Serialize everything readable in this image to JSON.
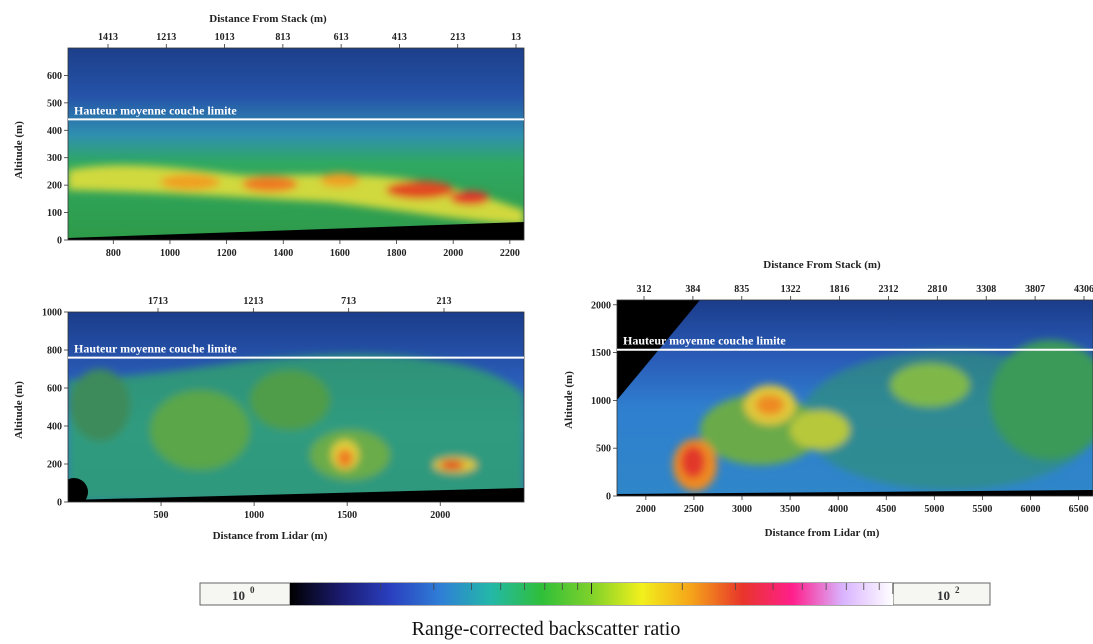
{
  "chart_data": [
    {
      "type": "heatmap",
      "id": "panel-1",
      "xlabel": "",
      "x2label": "Distance From Stack (m)",
      "ylabel": "Altitude (m)",
      "x_ticks": [
        "800",
        "1000",
        "1200",
        "1400",
        "1600",
        "1800",
        "2000",
        "2200"
      ],
      "x_range": [
        640,
        2250
      ],
      "x2_ticks": [
        "1413",
        "1213",
        "1013",
        "813",
        "613",
        "413",
        "213",
        "13"
      ],
      "y_ticks": [
        "0",
        "100",
        "200",
        "300",
        "400",
        "500",
        "600"
      ],
      "y_range": [
        0,
        700
      ],
      "boundary_layer": {
        "label": "Hauteur moyenne couche limite",
        "altitude": 440
      },
      "plume_centerline": [
        [
          650,
          230
        ],
        [
          850,
          225
        ],
        [
          1050,
          215
        ],
        [
          1250,
          200
        ],
        [
          1450,
          210
        ],
        [
          1650,
          200
        ],
        [
          1850,
          180
        ],
        [
          2050,
          160
        ],
        [
          2200,
          140
        ]
      ]
    },
    {
      "type": "heatmap",
      "id": "panel-2",
      "xlabel": "Distance from Lidar (m)",
      "x2label": "",
      "ylabel": "Altitude (m)",
      "x_ticks": [
        "500",
        "1000",
        "1500",
        "2000"
      ],
      "x_range": [
        0,
        2450
      ],
      "x2_ticks": [
        "1713",
        "1213",
        "713",
        "213"
      ],
      "y_ticks": [
        "0",
        "200",
        "400",
        "600",
        "800",
        "1000"
      ],
      "y_range": [
        0,
        1000
      ],
      "boundary_layer": {
        "label": "Hauteur moyenne couche limite",
        "altitude": 760
      }
    },
    {
      "type": "heatmap",
      "id": "panel-3",
      "xlabel": "Distance from Lidar (m)",
      "x2label": "Distance From Stack (m)",
      "ylabel": "Altitude (m)",
      "x_ticks": [
        "2000",
        "2500",
        "3000",
        "3500",
        "4000",
        "4500",
        "5000",
        "5500",
        "6000",
        "6500"
      ],
      "x_range": [
        1700,
        6650
      ],
      "x2_ticks": [
        "312",
        "384",
        "835",
        "1322",
        "1816",
        "2312",
        "2810",
        "3308",
        "3807",
        "4306"
      ],
      "y_ticks": [
        "0",
        "500",
        "1000",
        "1500",
        "2000"
      ],
      "y_range": [
        0,
        2050
      ],
      "boundary_layer": {
        "label": "Hauteur moyenne couche limite",
        "altitude": 1530
      }
    }
  ],
  "colorbar": {
    "min_base": "10",
    "min_exp": "0",
    "max_base": "10",
    "max_exp": "2",
    "stops": [
      "#000000",
      "#1a1a6e",
      "#2a3fbf",
      "#2f7fd6",
      "#23b8a8",
      "#2fbf3a",
      "#7fd12a",
      "#f2f01c",
      "#f5a21a",
      "#e8352a",
      "#ff1f8c",
      "#d9b3ff",
      "#ffffff"
    ]
  },
  "caption": "Range-corrected backscatter ratio",
  "colors": {
    "background_blue": "#2f5fb8",
    "plume_green": "#33a84a",
    "plume_yellow": "#e8e03a",
    "plume_red": "#e24a24",
    "ground_black": "#000000",
    "boundary_line": "#ffffff"
  }
}
